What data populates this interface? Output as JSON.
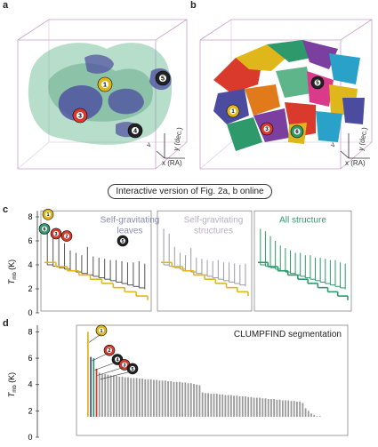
{
  "panels": {
    "a": {
      "label": "a"
    },
    "b": {
      "label": "b"
    },
    "c": {
      "label": "c"
    },
    "d": {
      "label": "d"
    }
  },
  "cube_axes": {
    "x": "x (RA)",
    "y": "y (dec.)",
    "vz": "v",
    "vz_sub": "z"
  },
  "interactive_button": "Interactive version of Fig. 2a, b online",
  "panel_c": {
    "subplots": [
      {
        "title_lines": [
          "Self-gravitating",
          "leaves"
        ],
        "color": "#8a8ab5"
      },
      {
        "title_lines": [
          "Self-gravitating",
          "structures"
        ],
        "color": "#b6b0c4"
      },
      {
        "title_lines": [
          "All structure"
        ],
        "color": "#2e9a6c"
      }
    ]
  },
  "panel_d": {
    "title": "CLUMPFIND segmentation"
  },
  "axis": {
    "ylabel_main": "T",
    "ylabel_sub": "mb",
    "ylabel_unit": " (K)",
    "yticks": [
      "0",
      "2",
      "4",
      "6",
      "8"
    ]
  },
  "markers": [
    "1",
    "2",
    "3",
    "4",
    "5",
    "6"
  ],
  "colors": {
    "blue_clump": "#4b4ba0",
    "green_cloud": "#5fb58a",
    "yellow_trunk": "#e0b71a",
    "dendro_gray": "#555555",
    "green_struct": "#2e9a6c"
  },
  "chart_data": {
    "type": "bar",
    "title": "CLUMPFIND segmentation",
    "ylabel": "T mb (K)",
    "ylim": [
      0,
      8.5
    ],
    "values_description_free": true,
    "values": [
      8.0,
      6.1,
      6.0,
      5.2,
      4.9,
      4.8,
      4.8,
      4.75,
      4.7,
      4.7,
      4.65,
      4.6,
      4.6,
      4.55,
      4.55,
      4.5,
      4.5,
      4.5,
      4.45,
      4.45,
      4.4,
      4.4,
      4.4,
      4.35,
      4.35,
      4.3,
      4.3,
      4.3,
      4.25,
      4.25,
      4.2,
      4.2,
      4.2,
      4.15,
      4.15,
      4.1,
      4.1,
      4.05,
      4.0,
      3.95,
      3.4,
      3.35,
      3.35,
      3.3,
      3.3,
      3.3,
      3.25,
      3.25,
      3.2,
      3.2,
      3.2,
      3.15,
      3.15,
      3.1,
      3.1,
      3.1,
      3.05,
      3.05,
      3.0,
      3.0,
      3.0,
      2.95,
      2.95,
      2.9,
      2.9,
      2.9,
      2.85,
      2.85,
      2.8,
      2.8,
      2.8,
      2.75,
      2.75,
      2.7,
      2.7,
      2.6,
      2.2,
      2.0,
      1.8,
      1.7,
      1.6,
      1.6
    ]
  }
}
